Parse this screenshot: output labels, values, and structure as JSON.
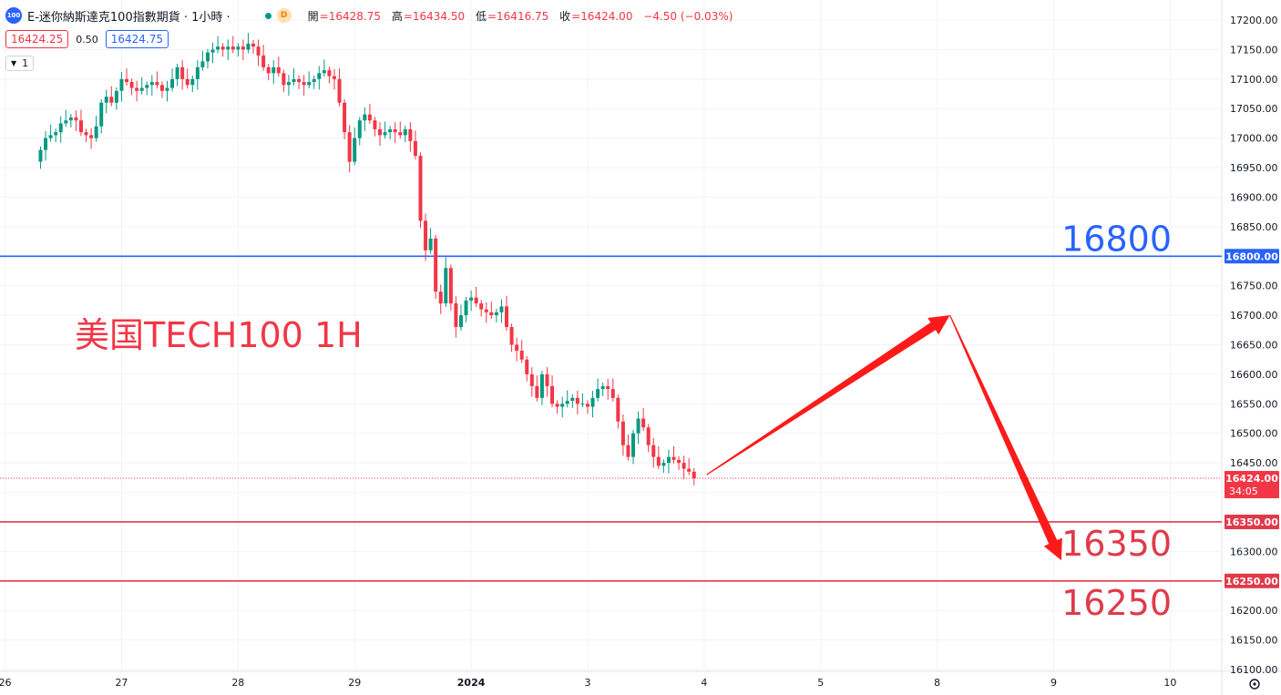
{
  "header": {
    "logo_text": "100",
    "symbol": "E-迷你納斯達克100指數期貨 · 1小時 ·",
    "status_badge": "D",
    "ohlc": [
      {
        "label": "開",
        "value": "=16428.75"
      },
      {
        "label": "高",
        "value": "=16434.50"
      },
      {
        "label": "低",
        "value": "=16416.75"
      },
      {
        "label": "收",
        "value": "=16424.00"
      },
      {
        "label": "",
        "value": "−4.50 (−0.03%)"
      }
    ],
    "bid": "16424.25",
    "spread": "0.50",
    "ask": "16424.75",
    "indicator_count": "1"
  },
  "colors": {
    "up": "#089981",
    "down": "#f23645",
    "blue": "#2962ff",
    "red_line": "#e03a4a",
    "arrow": "#ff1a1a"
  },
  "chart_data": {
    "type": "candlestick",
    "title": "美国TECH100 1H",
    "interval": "1小時",
    "ylim": [
      16100,
      17200
    ],
    "y_ticks": [
      16100,
      16150,
      16200,
      16250,
      16300,
      16350,
      16400,
      16450,
      16500,
      16550,
      16600,
      16650,
      16700,
      16750,
      16800,
      16850,
      16900,
      16950,
      17000,
      17050,
      17100,
      17150,
      17200
    ],
    "x_ticks": [
      {
        "label": "26",
        "i": -7
      },
      {
        "label": "27",
        "i": 16
      },
      {
        "label": "28",
        "i": 39
      },
      {
        "label": "29",
        "i": 62
      },
      {
        "label": "2024",
        "i": 85
      },
      {
        "label": "3",
        "i": 108
      },
      {
        "label": "4",
        "i": 131
      },
      {
        "label": "5",
        "i": 154
      },
      {
        "label": "8",
        "i": 177
      },
      {
        "label": "9",
        "i": 200
      },
      {
        "label": "10",
        "i": 223
      }
    ],
    "xlim": [
      -8,
      233
    ],
    "candle_close": [
      16980,
      17000,
      17005,
      17010,
      17025,
      17030,
      17035,
      17030,
      17010,
      17005,
      17000,
      17020,
      17060,
      17070,
      17060,
      17080,
      17100,
      17095,
      17085,
      17080,
      17085,
      17090,
      17095,
      17090,
      17080,
      17085,
      17100,
      17120,
      17100,
      17090,
      17100,
      17120,
      17130,
      17145,
      17150,
      17155,
      17150,
      17155,
      17150,
      17155,
      17150,
      17160,
      17155,
      17140,
      17120,
      17110,
      17120,
      17110,
      17090,
      17095,
      17100,
      17095,
      17090,
      17095,
      17100,
      17110,
      17115,
      17105,
      17100,
      17060,
      17010,
      16960,
      17000,
      17030,
      17040,
      17030,
      17015,
      17005,
      17010,
      17015,
      17010,
      17005,
      17015,
      16995,
      16970,
      16860,
      16810,
      16830,
      16740,
      16720,
      16780,
      16720,
      16680,
      16700,
      16725,
      16730,
      16720,
      16710,
      16705,
      16700,
      16705,
      16715,
      16680,
      16650,
      16640,
      16625,
      16600,
      16580,
      16560,
      16600,
      16580,
      16550,
      16545,
      16550,
      16555,
      16560,
      16550,
      16550,
      16545,
      16560,
      16575,
      16580,
      16575,
      16560,
      16520,
      16480,
      16460,
      16500,
      16525,
      16510,
      16480,
      16460,
      16445,
      16450,
      16460,
      16455,
      16450,
      16440,
      16435,
      16424
    ],
    "candle_open_first": 16960,
    "candle_high_offset": 12,
    "candle_low_offset": 12,
    "horizontal_levels": [
      {
        "price": 16800,
        "label": "16800",
        "axis_label": "16800.00",
        "color": "blue"
      },
      {
        "price": 16350,
        "label": "16350",
        "axis_label": "16350.00",
        "color": "red"
      },
      {
        "price": 16250,
        "label": "16250",
        "axis_label": "16250.00",
        "color": "red"
      }
    ],
    "last_price": {
      "price": 16424,
      "label": "16424.00",
      "countdown": "34:05"
    },
    "projection": [
      {
        "i": 131.5,
        "price": 16430
      },
      {
        "i": 179.5,
        "price": 16700
      },
      {
        "i": 201.5,
        "price": 16285
      }
    ]
  }
}
